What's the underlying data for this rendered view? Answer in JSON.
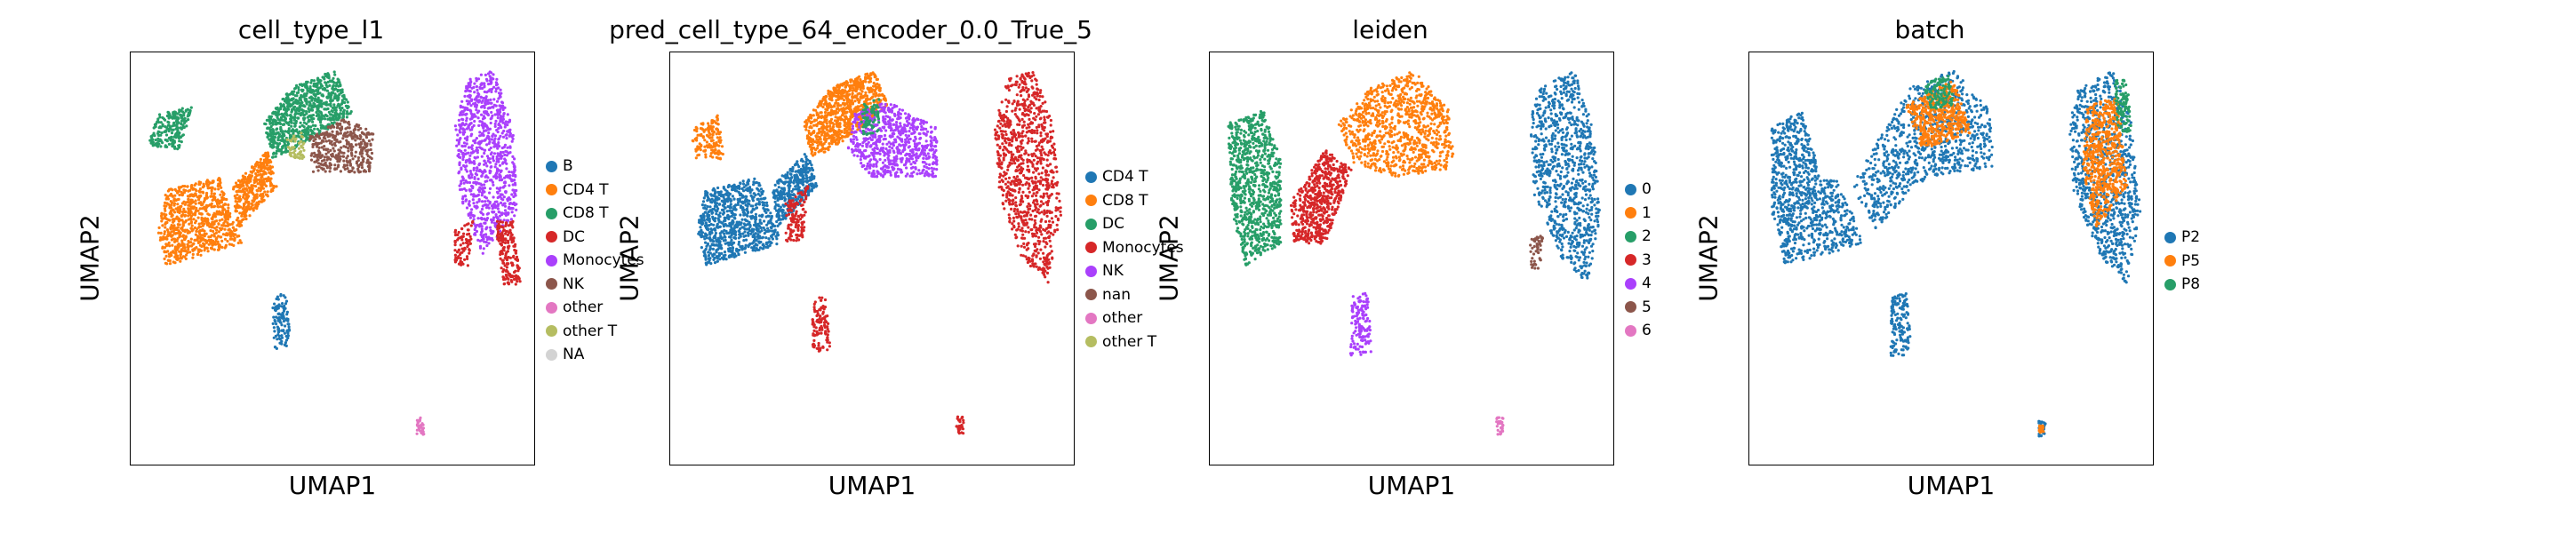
{
  "chart_data": [
    {
      "type": "scatter",
      "title": "cell_type_l1",
      "xlabel": "UMAP1",
      "ylabel": "UMAP2",
      "grid": false,
      "legend_position": "right",
      "legend": [
        {
          "label": "B",
          "color": "#1f77b4"
        },
        {
          "label": "CD4 T",
          "color": "#ff7f0e"
        },
        {
          "label": "CD8 T",
          "color": "#279e68"
        },
        {
          "label": "DC",
          "color": "#d62728"
        },
        {
          "label": "Monocytes",
          "color": "#aa40fc"
        },
        {
          "label": "NK",
          "color": "#8c564b"
        },
        {
          "label": "other",
          "color": "#e377c2"
        },
        {
          "label": "other T",
          "color": "#b5bd61"
        },
        {
          "label": "NA",
          "color": "#d3d3d3"
        }
      ]
    },
    {
      "type": "scatter",
      "title": "pred_cell_type_64_encoder_0.0_True_5",
      "xlabel": "UMAP1",
      "ylabel": "UMAP2",
      "grid": false,
      "legend_position": "right",
      "legend": [
        {
          "label": "CD4 T",
          "color": "#1f77b4"
        },
        {
          "label": "CD8 T",
          "color": "#ff7f0e"
        },
        {
          "label": "DC",
          "color": "#279e68"
        },
        {
          "label": "Monocytes",
          "color": "#d62728"
        },
        {
          "label": "NK",
          "color": "#aa40fc"
        },
        {
          "label": "nan",
          "color": "#8c564b"
        },
        {
          "label": "other",
          "color": "#e377c2"
        },
        {
          "label": "other T",
          "color": "#b5bd61"
        }
      ]
    },
    {
      "type": "scatter",
      "title": "leiden",
      "xlabel": "UMAP1",
      "ylabel": "UMAP2",
      "grid": false,
      "legend_position": "right",
      "legend": [
        {
          "label": "0",
          "color": "#1f77b4"
        },
        {
          "label": "1",
          "color": "#ff7f0e"
        },
        {
          "label": "2",
          "color": "#279e68"
        },
        {
          "label": "3",
          "color": "#d62728"
        },
        {
          "label": "4",
          "color": "#aa40fc"
        },
        {
          "label": "5",
          "color": "#8c564b"
        },
        {
          "label": "6",
          "color": "#e377c2"
        }
      ]
    },
    {
      "type": "scatter",
      "title": "batch",
      "xlabel": "UMAP1",
      "ylabel": "UMAP2",
      "grid": false,
      "legend_position": "right",
      "legend": [
        {
          "label": "P2",
          "color": "#1f77b4"
        },
        {
          "label": "P5",
          "color": "#ff7f0e"
        },
        {
          "label": "P8",
          "color": "#279e68"
        }
      ]
    }
  ]
}
